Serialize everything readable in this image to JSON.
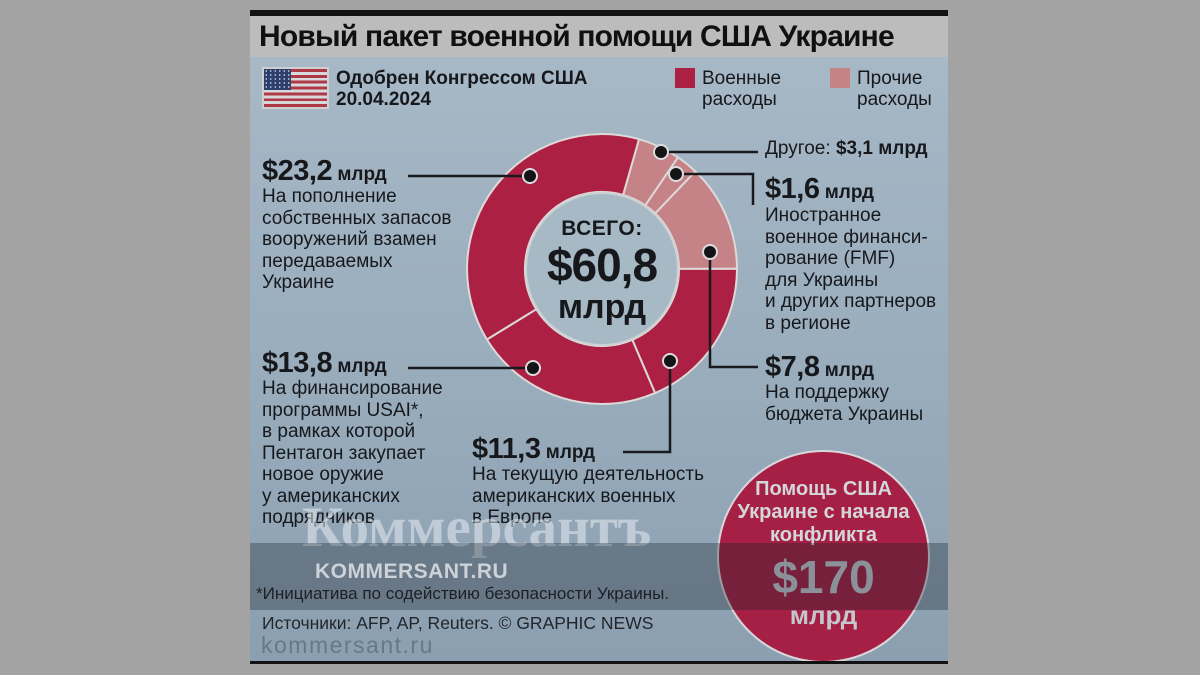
{
  "header": {
    "title": "Новый пакет военной помощи США Украине",
    "approved": "Одобрен Конгрессом США\n20.04.2024"
  },
  "legend": {
    "military": {
      "label": "Военные\nрасходы",
      "color": "#ac2044"
    },
    "other": {
      "label": "Прочие\nрасходы",
      "color": "#c58287"
    }
  },
  "donut_center": {
    "label": "ВСЕГО:",
    "value": "$60,8",
    "unit": "млрд"
  },
  "annotations": {
    "restock": {
      "value": "$23,2",
      "unit": " млрд",
      "desc": "На пополнение\nсобственных запасов\nвооружений взамен\nпередаваемых\nУкраине"
    },
    "usai": {
      "value": "$13,8",
      "unit": " млрд",
      "desc": "На финансирование\nпрограммы USAI*,\nв рамках которой\nПентагон закупает\nновое оружие\nу американских\nподрядчиков"
    },
    "europe": {
      "value": "$11,3",
      "unit": " млрд",
      "desc": "На текущую деятельность\nамериканских военных\nв Европе"
    },
    "other_misc": {
      "prefix": "Другое: ",
      "value": "$3,1 млрд"
    },
    "fmf": {
      "value": "$1,6",
      "unit": " млрд",
      "desc": "Иностранное\nвоенное финанси-\nрование (FMF)\nдля Украины\nи других партнеров\nв регионе"
    },
    "budget": {
      "value": "$7,8",
      "unit": " млрд",
      "desc": "На поддержку\nбюджета Украины"
    }
  },
  "total_aid_circle": {
    "headline": "Помощь США\nУкраине с начала\nконфликта",
    "value": "$170",
    "unit": "млрд"
  },
  "watermark": {
    "logo": "Коммерсантъ",
    "site": "KOMMERSANT.RU"
  },
  "footnote": "*Инициатива по содействию безопасности Украины.",
  "sources": "Источники: AFP, AP, Reuters. © GRAPHIC NEWS",
  "site_footer": "kommersant.ru",
  "colors": {
    "military_red": "#ac2044",
    "other_pink": "#c58287",
    "panel_blue": "#98acbc",
    "inner_hole": "#a8b9c6",
    "circle_red": "#a62045",
    "outer_gray": "#a3a3a3",
    "title_band_gray": "#bcbcbc",
    "line_black": "#1a1a1e"
  },
  "chart_data": {
    "type": "pie",
    "title": "Новый пакет военной помощи США Украине",
    "total": 60.8,
    "total_label": "ВСЕГО: $60,8 млрд",
    "units": "$ млрд",
    "start_angle_deg": 15.9,
    "legend": [
      "Военные расходы",
      "Прочие расходы"
    ],
    "slices": [
      {
        "key": "other-misc",
        "label": "Другое",
        "value": 3.1,
        "group": "Прочие расходы",
        "color": "#c58287"
      },
      {
        "key": "fmf",
        "label": "Иностранное военное финансирование (FMF) для Украины и других партнеров в регионе",
        "value": 1.6,
        "group": "Прочие расходы",
        "color": "#c58287"
      },
      {
        "key": "budget-support",
        "label": "На поддержку бюджета Украины",
        "value": 7.8,
        "group": "Прочие расходы",
        "color": "#c58287"
      },
      {
        "key": "us-military-europe",
        "label": "На текущую деятельность американских военных в Европе",
        "value": 11.3,
        "group": "Военные расходы",
        "color": "#ac2044"
      },
      {
        "key": "usai",
        "label": "На финансирование программы USAI, в рамках которой Пентагон закупает новое оружие у американских подрядчиков",
        "value": 13.8,
        "group": "Военные расходы",
        "color": "#ac2044"
      },
      {
        "key": "restock",
        "label": "На пополнение собственных запасов вооружений взамен передаваемых Украине",
        "value": 23.2,
        "group": "Военные расходы",
        "color": "#ac2044"
      }
    ],
    "callout": {
      "label": "Помощь США Украине с начала конфликта",
      "value": 170,
      "units": "$ млрд"
    }
  }
}
